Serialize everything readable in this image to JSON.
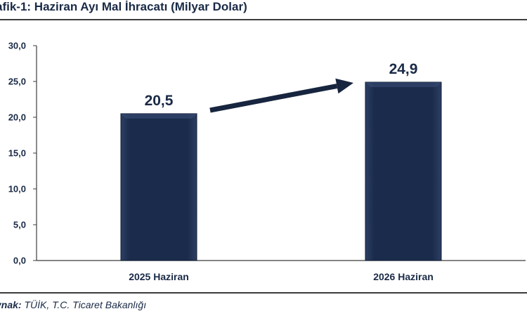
{
  "title": "afik-1: Haziran Ayı Mal İhracatı (Milyar Dolar)",
  "source": {
    "label": "ynak:",
    "text": " TÜİK, T.C. Ticaret Bakanlığı"
  },
  "colors": {
    "bar": "#1b2b4b",
    "bar_light": "#3a4f78",
    "text": "#1a2a46",
    "axis": "#3c3c3c",
    "arrow": "#17253f"
  },
  "chart_data": {
    "type": "bar",
    "categories": [
      "2025 Haziran",
      "2026 Haziran"
    ],
    "values": [
      20.5,
      24.9
    ],
    "value_labels": [
      "20,5",
      "24,9"
    ],
    "ylim": [
      0,
      30
    ],
    "yticks": [
      0,
      5,
      10,
      15,
      20,
      25,
      30
    ],
    "ytick_labels": [
      "0,0",
      "5,0",
      "10,0",
      "15,0",
      "20,0",
      "25,0",
      "30,0"
    ],
    "grid": false,
    "legend": "none"
  }
}
